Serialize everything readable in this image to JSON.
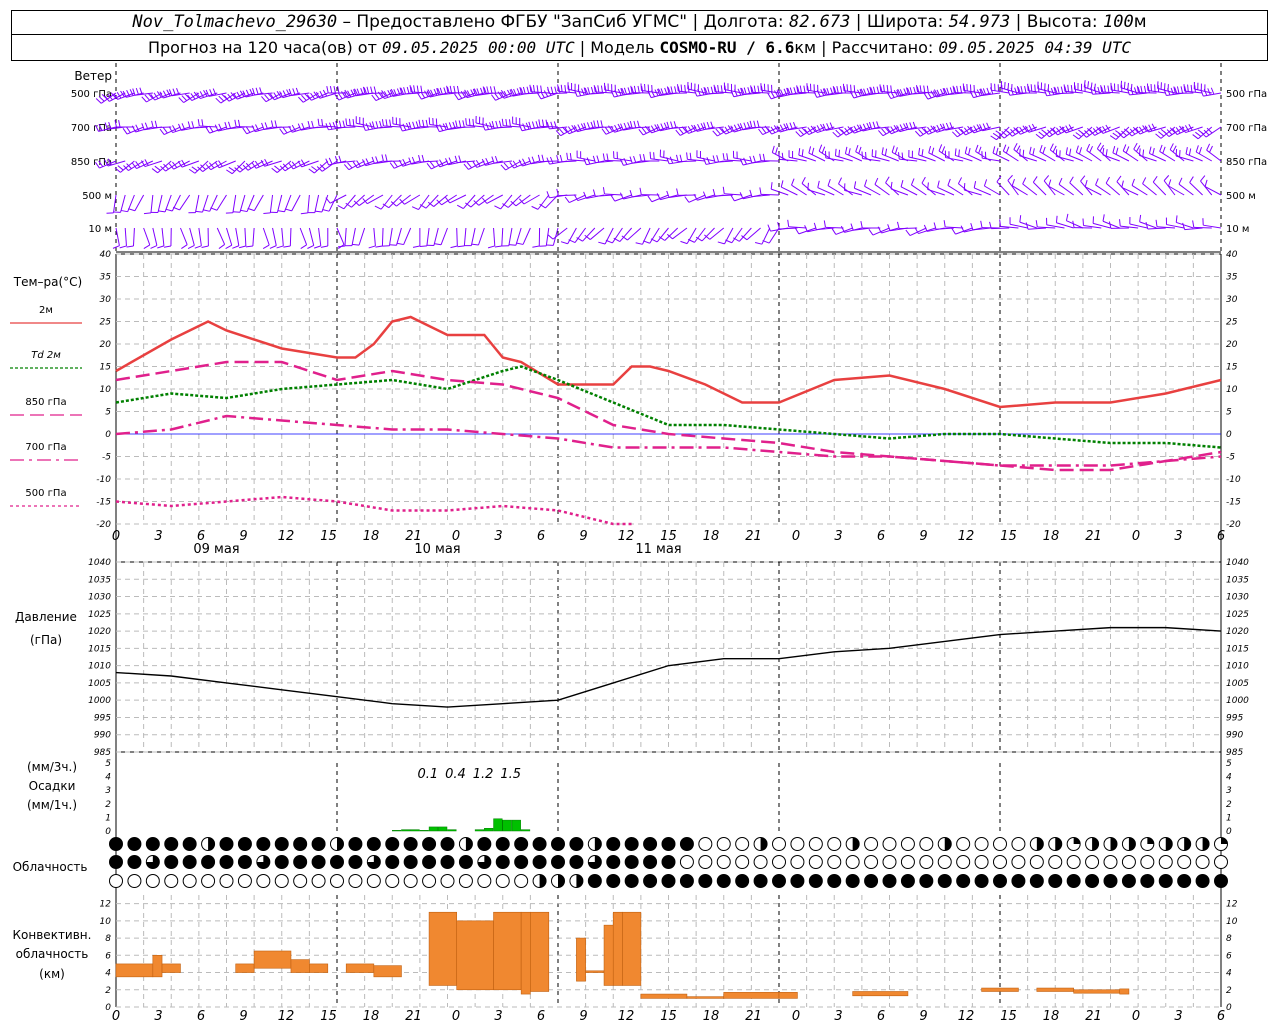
{
  "header": {
    "station": "Nov_Tolmachevo_29630",
    "provider": " – Предоставлено ФГБУ \"ЗапСиб УГМС\" | Долгота: ",
    "lon": "82.673",
    "lat_label": " | Широта: ",
    "lat": "54.973",
    "alt_label": " | Высота: ",
    "alt": "100",
    "alt_unit": "м",
    "forecast_label": "Прогноз на 120 часа(ов) от ",
    "run": "09.05.2025 00:00 UTC",
    "model_label": "  | Модель ",
    "model": "COSMO-RU / 6.6",
    "model_unit": "км",
    "calc_label": " | Рассчитано: ",
    "calc": "09.05.2025 04:39 UTC"
  },
  "chart_data": {
    "type": "meteogram",
    "time_ticks": [
      "0",
      "3",
      "6",
      "9",
      "12",
      "15",
      "18",
      "21",
      "0",
      "3",
      "6",
      "9",
      "12",
      "15",
      "18",
      "21",
      "0",
      "3",
      "6",
      "9",
      "12",
      "15",
      "18",
      "21",
      "0",
      "3",
      "6"
    ],
    "dates": [
      "09 мая",
      "10 мая",
      "11 мая"
    ],
    "wind": {
      "title": "Ветер",
      "levels": [
        "500 гПа",
        "700 гПа",
        "850 гПа",
        "500 м",
        "10 м"
      ],
      "color": "#8000ff"
    },
    "temperature": {
      "title": "Тем–ра(°C)",
      "ylim": [
        -20,
        40
      ],
      "yticks": [
        -20,
        -15,
        -10,
        -5,
        0,
        5,
        10,
        15,
        20,
        25,
        30,
        35,
        40
      ],
      "series": [
        {
          "name": "2м",
          "color": "#e84040",
          "dash": "solid",
          "hours": [
            0,
            6,
            10,
            12,
            18,
            24,
            26,
            28,
            30,
            32,
            34,
            36,
            40,
            42,
            44,
            48,
            50,
            52,
            54,
            56,
            58,
            60,
            64,
            68,
            72,
            78,
            84,
            90,
            96,
            102,
            108,
            114,
            118,
            120
          ],
          "values": [
            14,
            21,
            25,
            23,
            19,
            17,
            17,
            20,
            25,
            26,
            24,
            22,
            22,
            17,
            16,
            11,
            11,
            11,
            11,
            15,
            15,
            14,
            11,
            7,
            7,
            12,
            13,
            10,
            6,
            7,
            7,
            9,
            11,
            12
          ]
        },
        {
          "name": "Td 2м",
          "color": "#008000",
          "dash": "dot",
          "hours": [
            0,
            6,
            12,
            18,
            24,
            30,
            36,
            42,
            44,
            48,
            54,
            60,
            66,
            72,
            78,
            84,
            90,
            96,
            102,
            108,
            114,
            120
          ],
          "values": [
            7,
            9,
            8,
            10,
            11,
            12,
            10,
            14,
            15,
            12,
            7,
            2,
            2,
            1,
            0,
            -1,
            0,
            0,
            -1,
            -2,
            -2,
            -3
          ]
        },
        {
          "name": "850 гПа",
          "color": "#e0208c",
          "dash": "dash",
          "hours": [
            0,
            6,
            12,
            18,
            24,
            30,
            36,
            42,
            48,
            54,
            60,
            66,
            72,
            78,
            84,
            90,
            96,
            102,
            108,
            114,
            120
          ],
          "values": [
            12,
            14,
            16,
            16,
            12,
            14,
            12,
            11,
            8,
            2,
            0,
            -1,
            -2,
            -4,
            -5,
            -6,
            -7,
            -8,
            -8,
            -6,
            -4
          ]
        },
        {
          "name": "700 гПа",
          "color": "#e0208c",
          "dash": "dashdot",
          "hours": [
            0,
            6,
            12,
            18,
            24,
            30,
            36,
            42,
            48,
            54,
            60,
            66,
            72,
            78,
            84,
            90,
            96,
            102,
            108,
            114,
            120
          ],
          "values": [
            0,
            1,
            4,
            3,
            2,
            1,
            1,
            0,
            -1,
            -3,
            -3,
            -3,
            -4,
            -5,
            -5,
            -6,
            -7,
            -7,
            -7,
            -6,
            -5
          ]
        },
        {
          "name": "500 гПа",
          "color": "#e0208c",
          "dash": "finedot",
          "hours": [
            0,
            6,
            12,
            18,
            24,
            30,
            36,
            42,
            48,
            54,
            56
          ],
          "values": [
            -15,
            -16,
            -15,
            -14,
            -15,
            -17,
            -17,
            -16,
            -17,
            -20,
            -20
          ]
        }
      ]
    },
    "pressure": {
      "title": "Давление",
      "unit": "(гПа)",
      "ylim": [
        985,
        1040
      ],
      "yticks": [
        985,
        990,
        995,
        1000,
        1005,
        1010,
        1015,
        1020,
        1025,
        1030,
        1035,
        1040
      ],
      "hours": [
        0,
        6,
        12,
        18,
        24,
        30,
        36,
        42,
        48,
        54,
        60,
        66,
        72,
        78,
        84,
        90,
        96,
        102,
        108,
        114,
        120
      ],
      "values": [
        1008,
        1007,
        1005,
        1003,
        1001,
        999,
        998,
        999,
        1000,
        1005,
        1010,
        1012,
        1012,
        1014,
        1015,
        1017,
        1019,
        1020,
        1021,
        1021,
        1020
      ]
    },
    "precip": {
      "title": "Осадки",
      "unit_3h": "(мм/3ч.)",
      "unit_1h": "(мм/1ч.)",
      "ylim": [
        0,
        5
      ],
      "yticks": [
        0,
        1,
        2,
        3,
        4,
        5
      ],
      "color": "#00c000",
      "labels": [
        {
          "hour": 33,
          "text": "0.1"
        },
        {
          "hour": 36,
          "text": "0.4"
        },
        {
          "hour": 39,
          "text": "1.2"
        },
        {
          "hour": 42,
          "text": "1.5"
        }
      ],
      "hours": [
        30,
        31,
        32,
        33,
        34,
        35,
        36,
        37,
        38,
        39,
        40,
        41,
        42,
        43,
        44
      ],
      "values": [
        0.05,
        0.1,
        0.1,
        0.05,
        0.3,
        0.3,
        0.1,
        0,
        0,
        0.1,
        0.2,
        0.9,
        0.8,
        0.8,
        0.1
      ]
    },
    "cloud": {
      "title": "Облачность",
      "rows": 3,
      "hours_per_symbol": 2
    },
    "convective": {
      "title": "Конвективн.",
      "title2": "облачность",
      "unit": "(км)",
      "ylim": [
        0,
        13
      ],
      "yticks": [
        0,
        2,
        4,
        6,
        8,
        10,
        12
      ],
      "color": "#f08830",
      "segments": [
        {
          "h0": 0,
          "h1": 4,
          "b": 3.5,
          "t": 5
        },
        {
          "h0": 4,
          "h1": 5,
          "b": 3.5,
          "t": 6
        },
        {
          "h0": 5,
          "h1": 7,
          "b": 4,
          "t": 5
        },
        {
          "h0": 13,
          "h1": 15,
          "b": 4,
          "t": 5
        },
        {
          "h0": 15,
          "h1": 19,
          "b": 4.5,
          "t": 6.5
        },
        {
          "h0": 19,
          "h1": 21,
          "b": 4,
          "t": 5.5
        },
        {
          "h0": 21,
          "h1": 23,
          "b": 4,
          "t": 5
        },
        {
          "h0": 25,
          "h1": 28,
          "b": 4,
          "t": 5
        },
        {
          "h0": 28,
          "h1": 31,
          "b": 3.5,
          "t": 4.8
        },
        {
          "h0": 34,
          "h1": 37,
          "b": 2.5,
          "t": 11
        },
        {
          "h0": 37,
          "h1": 41,
          "b": 2,
          "t": 10
        },
        {
          "h0": 41,
          "h1": 44,
          "b": 2,
          "t": 11
        },
        {
          "h0": 44,
          "h1": 45,
          "b": 1.5,
          "t": 11
        },
        {
          "h0": 45,
          "h1": 47,
          "b": 1.8,
          "t": 11
        },
        {
          "h0": 50,
          "h1": 51,
          "b": 3,
          "t": 8
        },
        {
          "h0": 51,
          "h1": 53,
          "b": 4,
          "t": 4.2
        },
        {
          "h0": 53,
          "h1": 54,
          "b": 2.5,
          "t": 9.5
        },
        {
          "h0": 54,
          "h1": 55,
          "b": 2.5,
          "t": 11
        },
        {
          "h0": 55,
          "h1": 57,
          "b": 2.5,
          "t": 11
        },
        {
          "h0": 57,
          "h1": 62,
          "b": 1,
          "t": 1.5
        },
        {
          "h0": 62,
          "h1": 66,
          "b": 1,
          "t": 1.2
        },
        {
          "h0": 66,
          "h1": 72,
          "b": 1,
          "t": 1.7
        },
        {
          "h0": 72,
          "h1": 74,
          "b": 1,
          "t": 1.7
        },
        {
          "h0": 80,
          "h1": 86,
          "b": 1.3,
          "t": 1.8
        },
        {
          "h0": 94,
          "h1": 98,
          "b": 1.8,
          "t": 2.2
        },
        {
          "h0": 100,
          "h1": 104,
          "b": 1.8,
          "t": 2.2
        },
        {
          "h0": 104,
          "h1": 109,
          "b": 1.6,
          "t": 2.0
        },
        {
          "h0": 109,
          "h1": 110,
          "b": 1.5,
          "t": 2.1
        }
      ]
    }
  }
}
